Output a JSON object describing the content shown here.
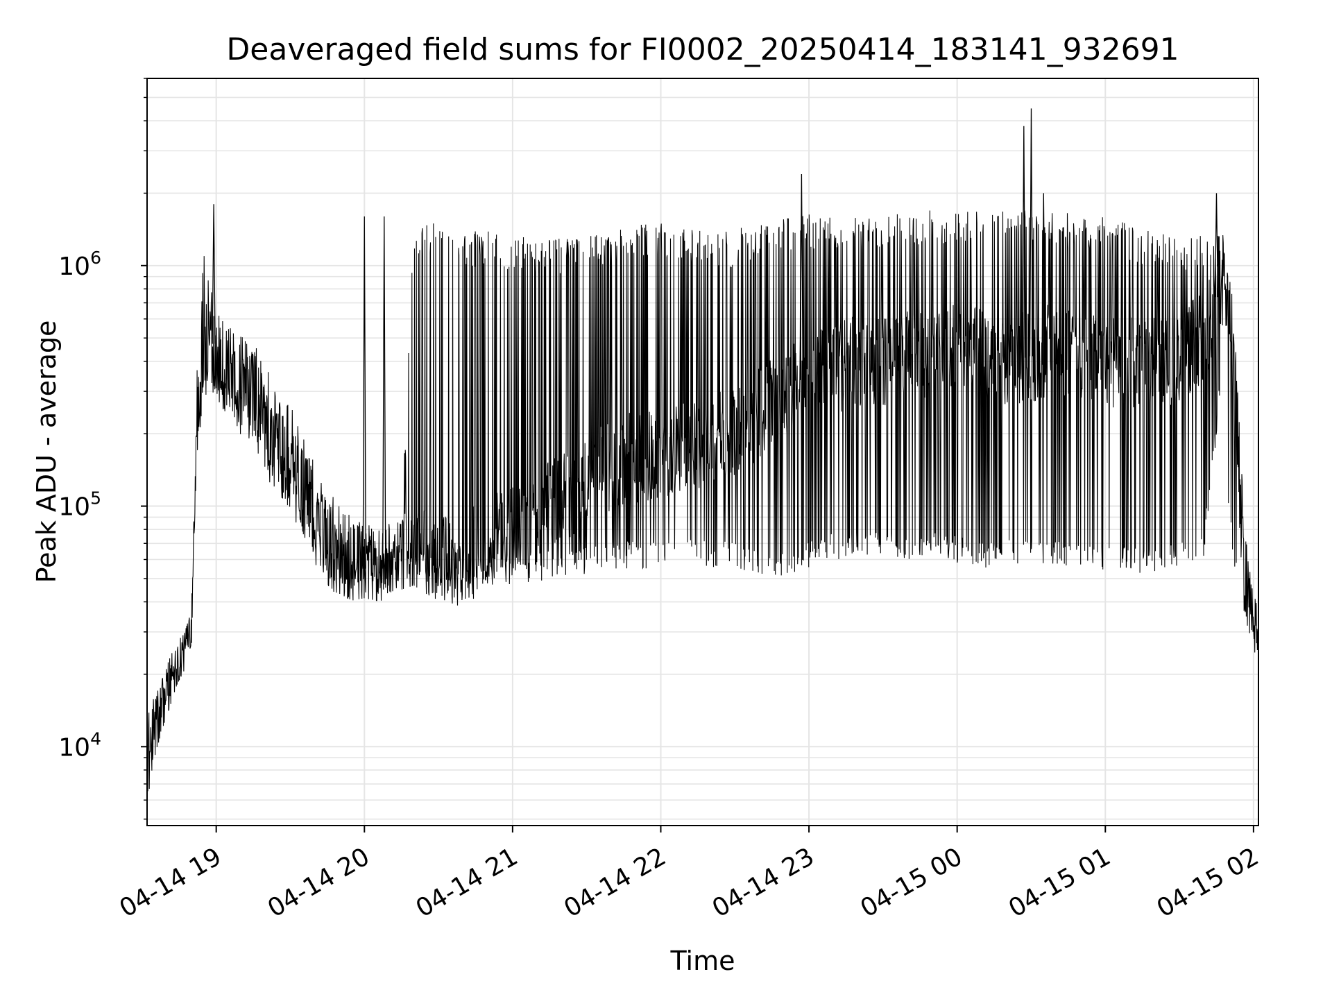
{
  "chart_data": {
    "type": "line",
    "title": "Deaveraged field sums for FI0002_20250414_183141_932691",
    "xlabel": "Time",
    "ylabel": "Peak ADU - average",
    "yscale": "log",
    "ylim": [
      4700,
      6000000
    ],
    "xlim": [
      "2025-04-14 18:32",
      "2025-04-15 02:02"
    ],
    "grid": true,
    "line_color": "#000000",
    "grid_color": "#e5e5e5",
    "x_ticks": [
      {
        "label": "04-14 19",
        "time": "2025-04-14 19:00"
      },
      {
        "label": "04-14 20",
        "time": "2025-04-14 20:00"
      },
      {
        "label": "04-14 21",
        "time": "2025-04-14 21:00"
      },
      {
        "label": "04-14 22",
        "time": "2025-04-14 22:00"
      },
      {
        "label": "04-14 23",
        "time": "2025-04-14 23:00"
      },
      {
        "label": "04-15 00",
        "time": "2025-04-15 00:00"
      },
      {
        "label": "04-15 01",
        "time": "2025-04-15 01:00"
      },
      {
        "label": "04-15 02",
        "time": "2025-04-15 02:00"
      }
    ],
    "y_ticks": [
      {
        "base": "10",
        "exp": "4",
        "value": 10000
      },
      {
        "base": "10",
        "exp": "5",
        "value": 100000
      },
      {
        "base": "10",
        "exp": "6",
        "value": 1000000
      }
    ],
    "series": [
      {
        "x": [
          "2025-04-14 18:32",
          "2025-04-14 18:35",
          "2025-04-14 18:38",
          "2025-04-14 18:41",
          "2025-04-14 18:44",
          "2025-04-14 18:47",
          "2025-04-14 18:50",
          "2025-04-14 18:52",
          "2025-04-14 18:55",
          "2025-04-14 18:58",
          "2025-04-14 19:02",
          "2025-04-14 19:06",
          "2025-04-14 19:10",
          "2025-04-14 19:15",
          "2025-04-14 19:20",
          "2025-04-14 19:25",
          "2025-04-14 19:30",
          "2025-04-14 19:35",
          "2025-04-14 19:40",
          "2025-04-14 19:45",
          "2025-04-14 19:50",
          "2025-04-14 19:55",
          "2025-04-14 20:00",
          "2025-04-14 20:05",
          "2025-04-14 20:10",
          "2025-04-14 20:15",
          "2025-04-14 20:20",
          "2025-04-14 20:25",
          "2025-04-14 20:30",
          "2025-04-14 20:35",
          "2025-04-14 20:40",
          "2025-04-14 20:50",
          "2025-04-14 21:00",
          "2025-04-14 21:10",
          "2025-04-14 21:20",
          "2025-04-14 21:30",
          "2025-04-14 21:40",
          "2025-04-14 21:50",
          "2025-04-14 22:00",
          "2025-04-14 22:10",
          "2025-04-14 22:20",
          "2025-04-14 22:30",
          "2025-04-14 22:40",
          "2025-04-14 22:50",
          "2025-04-14 23:00",
          "2025-04-14 23:10",
          "2025-04-14 23:20",
          "2025-04-14 23:30",
          "2025-04-14 23:40",
          "2025-04-14 23:50",
          "2025-04-15 00:00",
          "2025-04-15 00:10",
          "2025-04-15 00:20",
          "2025-04-15 00:30",
          "2025-04-15 00:40",
          "2025-04-15 00:50",
          "2025-04-15 01:00",
          "2025-04-15 01:10",
          "2025-04-15 01:20",
          "2025-04-15 01:30",
          "2025-04-15 01:40",
          "2025-04-15 01:46",
          "2025-04-15 01:50",
          "2025-04-15 01:53",
          "2025-04-15 01:56",
          "2025-04-15 01:59",
          "2025-04-15 02:02"
        ],
        "y_low": [
          6000,
          10000,
          13000,
          16000,
          20000,
          23000,
          30000,
          150000,
          280000,
          300000,
          280000,
          250000,
          220000,
          200000,
          140000,
          120000,
          110000,
          80000,
          60000,
          50000,
          48000,
          45000,
          46000,
          45000,
          45000,
          50000,
          52000,
          48000,
          45000,
          44000,
          42000,
          45000,
          45000,
          48000,
          50000,
          52000,
          55000,
          55000,
          55000,
          57000,
          55000,
          55000,
          50000,
          50000,
          55000,
          60000,
          60000,
          60000,
          60000,
          60000,
          58000,
          55000,
          56000,
          58000,
          55000,
          55000,
          54000,
          52000,
          53000,
          55000,
          60000,
          250000,
          80000,
          45000,
          35000,
          30000,
          25000
        ],
        "y_high": [
          15000,
          15000,
          18000,
          22000,
          26000,
          28000,
          35000,
          320000,
          1200000,
          900000,
          700000,
          600000,
          550000,
          500000,
          400000,
          300000,
          300000,
          200000,
          150000,
          120000,
          100000,
          100000,
          90000,
          90000,
          85000,
          80000,
          1500000,
          1500000,
          1500000,
          1300000,
          1400000,
          1400000,
          1350000,
          1300000,
          1300000,
          1350000,
          1400000,
          1500000,
          1500000,
          1450000,
          1400000,
          1400000,
          1550000,
          1600000,
          1650000,
          1600000,
          1600000,
          1650000,
          1650000,
          1700000,
          1700000,
          1750000,
          1700000,
          1700000,
          1700000,
          1650000,
          1600000,
          1500000,
          1400000,
          1300000,
          1400000,
          1500000,
          1200000,
          500000,
          100000,
          45000,
          35000
        ],
        "y_typical": [
          9000,
          12000,
          15000,
          19000,
          23000,
          25000,
          32000,
          250000,
          500000,
          500000,
          400000,
          350000,
          300000,
          280000,
          220000,
          150000,
          130000,
          120000,
          90000,
          70000,
          60000,
          58000,
          55000,
          55000,
          55000,
          60000,
          60000,
          62000,
          60000,
          58000,
          60000,
          70000,
          80000,
          90000,
          110000,
          130000,
          150000,
          160000,
          170000,
          180000,
          190000,
          200000,
          250000,
          300000,
          350000,
          380000,
          400000,
          400000,
          420000,
          450000,
          450000,
          420000,
          400000,
          420000,
          450000,
          430000,
          400000,
          400000,
          400000,
          420000,
          500000,
          800000,
          800000,
          200000,
          60000,
          40000,
          30000
        ],
        "spikes": [
          {
            "x": "2025-04-14 18:59",
            "y": 1800000
          },
          {
            "x": "2025-04-14 20:00",
            "y": 1600000
          },
          {
            "x": "2025-04-14 20:08",
            "y": 1600000
          },
          {
            "x": "2025-04-14 22:57",
            "y": 2400000
          },
          {
            "x": "2025-04-15 00:27",
            "y": 3800000
          },
          {
            "x": "2025-04-15 00:30",
            "y": 4500000
          },
          {
            "x": "2025-04-15 00:35",
            "y": 2000000
          },
          {
            "x": "2025-04-15 01:45",
            "y": 2000000
          }
        ]
      }
    ]
  }
}
